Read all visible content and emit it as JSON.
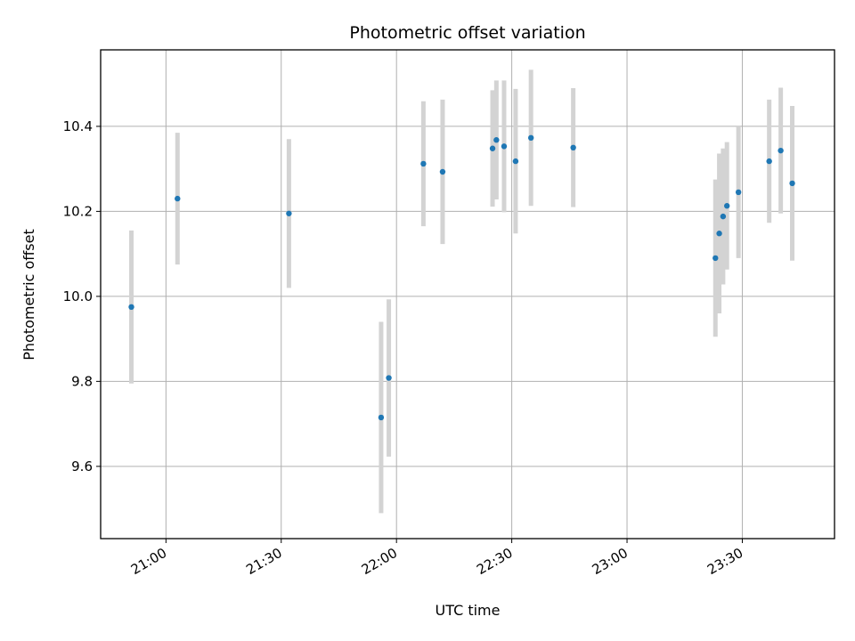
{
  "chart_data": {
    "type": "scatter",
    "title": "Photometric offset variation",
    "xlabel": "UTC time",
    "ylabel": "Photometric offset",
    "x_unit": "time of day (HH:MM)",
    "xlim": [
      "20:43",
      "23:54"
    ],
    "ylim": [
      9.43,
      10.58
    ],
    "x_ticks": [
      "21:00",
      "21:30",
      "22:00",
      "22:30",
      "23:00",
      "23:30"
    ],
    "y_ticks": [
      9.6,
      9.8,
      10.0,
      10.2,
      10.4
    ],
    "y_tick_labels": [
      "9.6",
      "9.8",
      "10.0",
      "10.2",
      "10.4"
    ],
    "grid": true,
    "marker_color": "#1f77b4",
    "errorbar_color": "#d3d3d3",
    "points": [
      {
        "x": "20:51",
        "y": 9.975,
        "yerr": 0.18
      },
      {
        "x": "21:03",
        "y": 10.23,
        "yerr": 0.155
      },
      {
        "x": "21:32",
        "y": 10.195,
        "yerr": 0.175
      },
      {
        "x": "21:56",
        "y": 9.715,
        "yerr": 0.225
      },
      {
        "x": "21:58",
        "y": 9.808,
        "yerr": 0.185
      },
      {
        "x": "22:07",
        "y": 10.312,
        "yerr": 0.147
      },
      {
        "x": "22:12",
        "y": 10.293,
        "yerr": 0.17
      },
      {
        "x": "22:25",
        "y": 10.348,
        "yerr": 0.137
      },
      {
        "x": "22:26",
        "y": 10.368,
        "yerr": 0.14
      },
      {
        "x": "22:28",
        "y": 10.353,
        "yerr": 0.155
      },
      {
        "x": "22:31",
        "y": 10.318,
        "yerr": 0.17
      },
      {
        "x": "22:35",
        "y": 10.373,
        "yerr": 0.16
      },
      {
        "x": "22:46",
        "y": 10.35,
        "yerr": 0.14
      },
      {
        "x": "23:23",
        "y": 10.09,
        "yerr": 0.185
      },
      {
        "x": "23:24",
        "y": 10.148,
        "yerr": 0.188
      },
      {
        "x": "23:25",
        "y": 10.188,
        "yerr": 0.16
      },
      {
        "x": "23:26",
        "y": 10.213,
        "yerr": 0.15
      },
      {
        "x": "23:29",
        "y": 10.245,
        "yerr": 0.155
      },
      {
        "x": "23:37",
        "y": 10.318,
        "yerr": 0.145
      },
      {
        "x": "23:40",
        "y": 10.343,
        "yerr": 0.148
      },
      {
        "x": "23:43",
        "y": 10.266,
        "yerr": 0.182
      }
    ]
  }
}
